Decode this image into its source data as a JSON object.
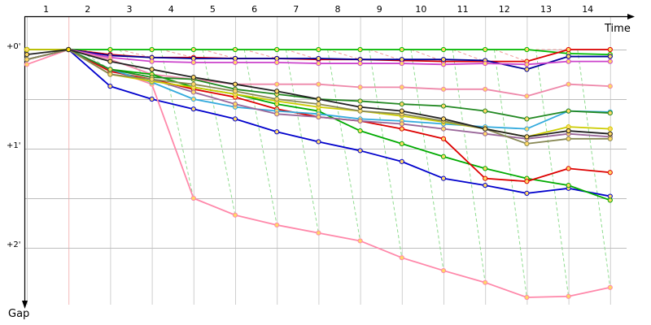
{
  "chart_data": {
    "type": "line",
    "xlabel": "Time",
    "ylabel": "Gap",
    "x_tick_labels": [
      "1",
      "2",
      "3",
      "4",
      "5",
      "6",
      "7",
      "8",
      "9",
      "10",
      "11",
      "12",
      "13",
      "14"
    ],
    "y_tick_labels": [
      "+0'",
      "+1'",
      "+2'"
    ],
    "y_tick_values": [
      0,
      1,
      2
    ],
    "ylim": [
      -0.1,
      2.6
    ],
    "grid": true,
    "series": [
      {
        "color": "#00bb00",
        "values": [
          0,
          0,
          0,
          0,
          0,
          0,
          0,
          0,
          0,
          0,
          0,
          0,
          0,
          0.04,
          0.05
        ]
      },
      {
        "color": "#dd0000",
        "values": [
          0,
          0,
          0.05,
          0.08,
          0.08,
          0.09,
          0.09,
          0.1,
          0.1,
          0.11,
          0.12,
          0.12,
          0.12,
          0,
          0
        ]
      },
      {
        "color": "#000099",
        "values": [
          0,
          0,
          0.06,
          0.08,
          0.09,
          0.09,
          0.09,
          0.09,
          0.1,
          0.1,
          0.1,
          0.11,
          0.2,
          0.07,
          0.07
        ]
      },
      {
        "color": "#cc44cc",
        "values": [
          0,
          0,
          0.08,
          0.12,
          0.13,
          0.13,
          0.13,
          0.14,
          0.14,
          0.14,
          0.15,
          0.14,
          0.15,
          0.12,
          0.12
        ]
      },
      {
        "color": "#ee88aa",
        "values": [
          0.1,
          0,
          0.1,
          0.25,
          0.3,
          0.35,
          0.35,
          0.35,
          0.38,
          0.38,
          0.4,
          0.4,
          0.47,
          0.35,
          0.37
        ]
      },
      {
        "color": "#0000cc",
        "values": [
          0.1,
          0,
          0.37,
          0.5,
          0.6,
          0.7,
          0.83,
          0.93,
          1.02,
          1.13,
          1.3,
          1.37,
          1.45,
          1.4,
          1.48
        ]
      },
      {
        "color": "#ff88aa",
        "values": [
          0.15,
          0,
          0.2,
          0.35,
          1.5,
          1.67,
          1.77,
          1.85,
          1.93,
          2.1,
          2.23,
          2.35,
          2.5,
          2.49,
          2.4
        ]
      },
      {
        "color": "#00aa00",
        "values": [
          0.1,
          0,
          0.2,
          0.25,
          0.38,
          0.45,
          0.55,
          0.62,
          0.82,
          0.95,
          1.08,
          1.2,
          1.3,
          1.37,
          1.52
        ]
      },
      {
        "color": "#dd0000",
        "values": [
          0.1,
          0,
          0.22,
          0.3,
          0.4,
          0.48,
          0.6,
          0.68,
          0.72,
          0.8,
          0.9,
          1.3,
          1.33,
          1.2,
          1.24
        ]
      },
      {
        "color": "#33aadd",
        "values": [
          0.1,
          0,
          0.2,
          0.33,
          0.5,
          0.58,
          0.62,
          0.65,
          0.7,
          0.72,
          0.75,
          0.78,
          0.8,
          0.62,
          0.63
        ]
      },
      {
        "color": "#228822",
        "values": [
          0,
          0,
          0.2,
          0.28,
          0.3,
          0.4,
          0.45,
          0.5,
          0.52,
          0.55,
          0.57,
          0.62,
          0.7,
          0.62,
          0.64
        ]
      },
      {
        "color": "#996699",
        "values": [
          0.1,
          0,
          0.25,
          0.3,
          0.43,
          0.55,
          0.65,
          0.68,
          0.72,
          0.75,
          0.8,
          0.85,
          0.9,
          0.85,
          0.88
        ]
      },
      {
        "color": "#cccc00",
        "values": [
          0,
          0,
          0.25,
          0.32,
          0.38,
          0.45,
          0.52,
          0.58,
          0.62,
          0.67,
          0.73,
          0.8,
          0.88,
          0.78,
          0.8
        ]
      },
      {
        "color": "#888855",
        "values": [
          0.1,
          0,
          0.25,
          0.3,
          0.35,
          0.42,
          0.5,
          0.55,
          0.62,
          0.65,
          0.72,
          0.8,
          0.95,
          0.9,
          0.9
        ]
      },
      {
        "color": "#222222",
        "values": [
          0.05,
          0,
          0.12,
          0.2,
          0.28,
          0.35,
          0.42,
          0.5,
          0.58,
          0.62,
          0.7,
          0.8,
          0.88,
          0.82,
          0.85
        ]
      }
    ]
  }
}
